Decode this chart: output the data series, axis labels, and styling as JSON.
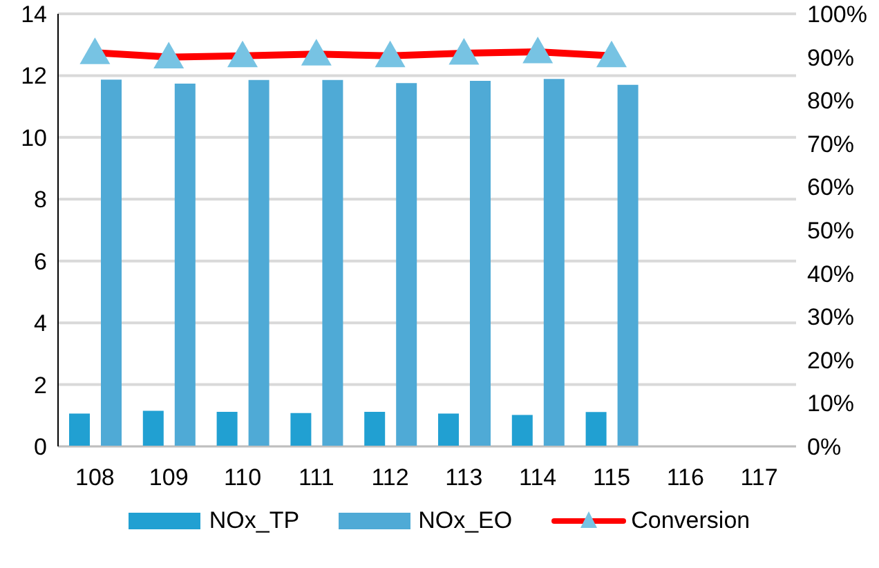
{
  "chart_data": {
    "type": "bar",
    "categories": [
      "108",
      "109",
      "110",
      "111",
      "112",
      "113",
      "114",
      "115",
      "116",
      "117"
    ],
    "series": [
      {
        "name": "NOx_TP",
        "color": "#21a0d2",
        "values": [
          1.06,
          1.15,
          1.12,
          1.08,
          1.12,
          1.06,
          1.02,
          1.11,
          null,
          null
        ]
      },
      {
        "name": "NOx_EO",
        "color": "#4faad6",
        "values": [
          11.87,
          11.74,
          11.86,
          11.86,
          11.76,
          11.83,
          11.89,
          11.7,
          null,
          null
        ]
      },
      {
        "name": "Conversion",
        "type": "line",
        "axis": "y2",
        "color": "#ff0000",
        "marker": "triangle",
        "values": [
          91.0,
          90.0,
          90.3,
          90.7,
          90.3,
          90.9,
          91.2,
          90.3,
          null,
          null
        ]
      }
    ],
    "ylim": [
      0,
      14
    ],
    "yticks": [
      0,
      2,
      4,
      6,
      8,
      10,
      12,
      14
    ],
    "y2lim": [
      0,
      100
    ],
    "y2ticks": [
      {
        "value": 0,
        "label": "0%"
      },
      {
        "value": 10,
        "label": "10%"
      },
      {
        "value": 20,
        "label": "20%"
      },
      {
        "value": 30,
        "label": "30%"
      },
      {
        "value": 40,
        "label": "40%"
      },
      {
        "value": 50,
        "label": "50%"
      },
      {
        "value": 60,
        "label": "60%"
      },
      {
        "value": 70,
        "label": "70%"
      },
      {
        "value": 80,
        "label": "80%"
      },
      {
        "value": 90,
        "label": "90%"
      },
      {
        "value": 100,
        "label": "100%"
      }
    ],
    "grid": "y",
    "legend": "bottom"
  }
}
